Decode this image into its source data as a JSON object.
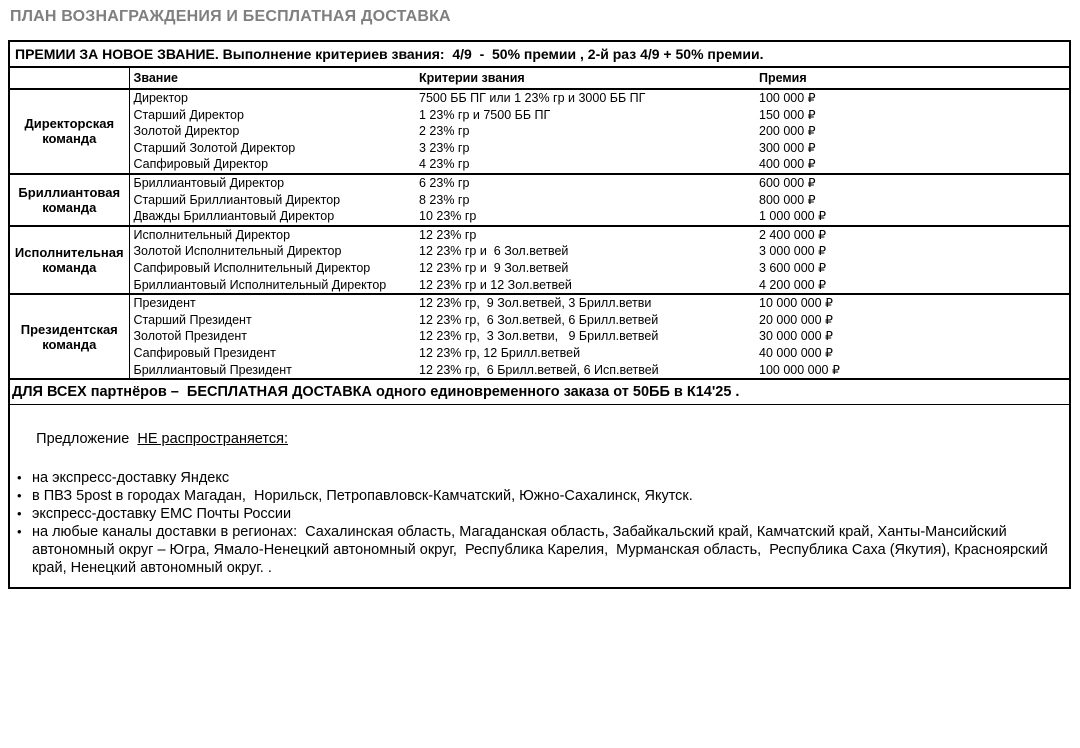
{
  "page_title": "ПЛАН ВОЗНАГРАЖДЕНИЯ И БЕСПЛАТНАЯ ДОСТАВКА",
  "bonus_table": {
    "header": "ПРЕМИИ ЗА НОВОЕ ЗВАНИЕ. Выполнение критериев звания:  4/9  -  50% премии , 2-й раз 4/9 + 50% премии.",
    "columns": {
      "rank": "Звание",
      "criteria": "Критерии звания",
      "premium": "Премия"
    },
    "groups": [
      {
        "name": "Директорская команда",
        "rows": [
          {
            "rank": "Директор",
            "criteria": "7500 ББ ПГ или 1 23% гр и 3000 ББ ПГ",
            "premium": "100 000 ₽"
          },
          {
            "rank": "Старший Директор",
            "criteria": "1 23% гр и 7500 ББ ПГ",
            "premium": "150 000 ₽"
          },
          {
            "rank": "Золотой Директор",
            "criteria": "2 23% гр",
            "premium": "200 000 ₽"
          },
          {
            "rank": "Старший Золотой Директор",
            "criteria": "3 23% гр",
            "premium": "300 000 ₽"
          },
          {
            "rank": "Сапфировый Директор",
            "criteria": "4 23% гр",
            "premium": "400 000 ₽"
          }
        ]
      },
      {
        "name": "Бриллиантовая команда",
        "rows": [
          {
            "rank": "Бриллиантовый Директор",
            "criteria": "6 23% гр",
            "premium": "600 000 ₽"
          },
          {
            "rank": "Старший Бриллиантовый Директор",
            "criteria": "8 23% гр",
            "premium": "800 000 ₽"
          },
          {
            "rank": "Дважды Бриллиантовый Директор",
            "criteria": "10 23% гр",
            "premium": "1 000 000 ₽"
          }
        ]
      },
      {
        "name": "Исполнительная команда",
        "rows": [
          {
            "rank": "Исполнительный Директор",
            "criteria": "12 23% гр",
            "premium": "2 400 000 ₽"
          },
          {
            "rank": "Золотой Исполнительный Директор",
            "criteria": "12 23% гр и  6 Зол.ветвей",
            "premium": "3 000 000 ₽"
          },
          {
            "rank": "Сапфировый Исполнительный Директор",
            "criteria": "12 23% гр и  9 Зол.ветвей",
            "premium": "3 600 000 ₽"
          },
          {
            "rank": "Бриллиантовый Исполнительный Директор",
            "criteria": "12 23% гр и 12 Зол.ветвей",
            "premium": "4 200 000 ₽"
          }
        ]
      },
      {
        "name": "Президентская команда",
        "rows": [
          {
            "rank": "Президент",
            "criteria": "12 23% гр,  9 Зол.ветвей, 3 Брилл.ветви",
            "premium": "10 000 000 ₽"
          },
          {
            "rank": "Старший Президент",
            "criteria": "12 23% гр,  6 Зол.ветвей, 6 Брилл.ветвей",
            "premium": "20 000 000 ₽"
          },
          {
            "rank": "Золотой Президент",
            "criteria": "12 23% гр,  3 Зол.ветви,   9 Брилл.ветвей",
            "premium": "30 000 000 ₽"
          },
          {
            "rank": "Сапфировый Президент",
            "criteria": "12 23% гр, 12 Брилл.ветвей",
            "premium": "40 000 000 ₽"
          },
          {
            "rank": "Бриллиантовый Президент",
            "criteria": "12 23% гр,  6 Брилл.ветвей, 6 Исп.ветвей",
            "premium": "100 000 000 ₽"
          }
        ]
      }
    ]
  },
  "delivery_section": {
    "headline": "ДЛЯ ВСЕХ партнёров –  БЕСПЛАТНАЯ ДОСТАВКА одного единовременного заказа от 50ББ в К14'25 .",
    "offer_intro": "Предложение  ",
    "offer_intro_underlined": "НЕ распространяется:",
    "bullet_char": "•",
    "bullets": [
      "на экспресс-доставку Яндекс",
      "в ПВЗ 5post в городах Магадан,  Норильск, Петропавловск-Камчатский, Южно-Сахалинск, Якутск.",
      "экспресс-доставку ЕМС Почты России",
      "на любые каналы доставки в регионах:  Сахалинская область, Магаданская область, Забайкальский край, Камчатский край, Ханты-Мансийский автономный округ – Югра, Ямало-Ненецкий автономный округ,  Республика Карелия,  Мурманская область,  Республика Саха (Якутия), Красноярский край, Ненецкий автономный округ. ."
    ]
  }
}
